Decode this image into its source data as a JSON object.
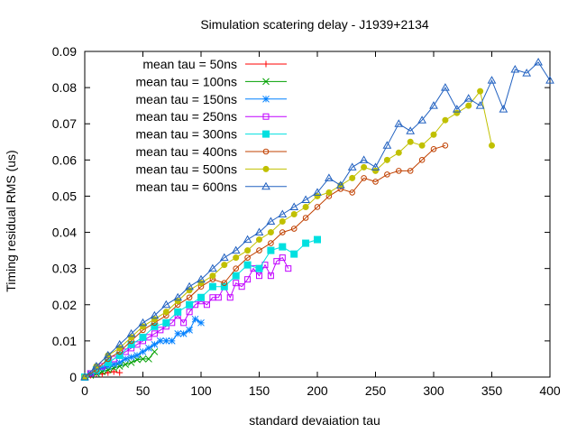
{
  "chart_data": {
    "type": "line",
    "title": "Simulation scatering delay - J1939+2134",
    "xlabel": "standard devaiation tau",
    "ylabel": "Timing residual RMS (us)",
    "xlim": [
      0,
      400
    ],
    "ylim": [
      0,
      0.09
    ],
    "xticks": [
      0,
      50,
      100,
      150,
      200,
      250,
      300,
      350,
      400
    ],
    "yticks": [
      0,
      0.01,
      0.02,
      0.03,
      0.04,
      0.05,
      0.06,
      0.07,
      0.08,
      0.09
    ],
    "ytick_labels": [
      "0",
      "0.01",
      "0.02",
      "0.03",
      "0.04",
      "0.05",
      "0.06",
      "0.07",
      "0.08",
      "0.09"
    ],
    "grid": false,
    "legend_position": "top-left",
    "series": [
      {
        "name": "mean tau = 50ns",
        "color": "#ff0000",
        "marker": "plus",
        "x": [
          0,
          5,
          10,
          15,
          20,
          25,
          30
        ],
        "y": [
          0,
          0.0005,
          0.001,
          0.0008,
          0.0012,
          0.0015,
          0.0012
        ]
      },
      {
        "name": "mean tau = 100ns",
        "color": "#00a000",
        "marker": "cross",
        "x": [
          0,
          5,
          10,
          15,
          20,
          25,
          30,
          35,
          40,
          45,
          50,
          55,
          60
        ],
        "y": [
          0,
          0.0005,
          0.001,
          0.0015,
          0.002,
          0.0025,
          0.003,
          0.0035,
          0.004,
          0.0048,
          0.005,
          0.005,
          0.007
        ]
      },
      {
        "name": "mean tau = 150ns",
        "color": "#0080ff",
        "marker": "star",
        "x": [
          0,
          5,
          10,
          15,
          20,
          25,
          30,
          35,
          40,
          45,
          50,
          55,
          60,
          65,
          70,
          75,
          80,
          85,
          90,
          95,
          100
        ],
        "y": [
          0,
          0.001,
          0.0015,
          0.0025,
          0.003,
          0.0035,
          0.004,
          0.005,
          0.0055,
          0.006,
          0.007,
          0.008,
          0.009,
          0.01,
          0.01,
          0.01,
          0.012,
          0.012,
          0.013,
          0.016,
          0.015
        ]
      },
      {
        "name": "mean tau = 250ns",
        "color": "#c000ff",
        "marker": "square",
        "x": [
          0,
          5,
          10,
          15,
          20,
          25,
          30,
          35,
          40,
          45,
          50,
          55,
          60,
          65,
          70,
          75,
          80,
          85,
          90,
          95,
          100,
          105,
          110,
          115,
          120,
          125,
          130,
          135,
          140,
          145,
          150,
          155,
          160,
          165,
          170,
          175
        ],
        "y": [
          0,
          0.001,
          0.002,
          0.003,
          0.004,
          0.005,
          0.006,
          0.007,
          0.008,
          0.009,
          0.01,
          0.011,
          0.012,
          0.013,
          0.014,
          0.015,
          0.017,
          0.015,
          0.018,
          0.02,
          0.021,
          0.02,
          0.022,
          0.022,
          0.025,
          0.022,
          0.026,
          0.025,
          0.027,
          0.03,
          0.028,
          0.031,
          0.028,
          0.032,
          0.033,
          0.03
        ]
      },
      {
        "name": "mean tau = 300ns",
        "color": "#00e0e0",
        "marker": "filled-square",
        "x": [
          0,
          10,
          20,
          30,
          40,
          50,
          60,
          70,
          80,
          90,
          100,
          110,
          120,
          130,
          140,
          150,
          160,
          170,
          180,
          190,
          200
        ],
        "y": [
          0,
          0.002,
          0.004,
          0.006,
          0.009,
          0.011,
          0.014,
          0.015,
          0.018,
          0.02,
          0.022,
          0.025,
          0.025,
          0.028,
          0.031,
          0.03,
          0.035,
          0.036,
          0.034,
          0.037,
          0.038
        ]
      },
      {
        "name": "mean tau = 400ns",
        "color": "#c04000",
        "marker": "circle",
        "x": [
          0,
          10,
          20,
          30,
          40,
          50,
          60,
          70,
          80,
          90,
          100,
          110,
          120,
          130,
          140,
          150,
          160,
          170,
          180,
          190,
          200,
          210,
          220,
          230,
          240,
          250,
          260,
          270,
          280,
          290,
          300,
          310
        ],
        "y": [
          0,
          0.002,
          0.005,
          0.007,
          0.01,
          0.013,
          0.015,
          0.017,
          0.02,
          0.022,
          0.025,
          0.027,
          0.026,
          0.03,
          0.033,
          0.035,
          0.037,
          0.04,
          0.041,
          0.044,
          0.047,
          0.05,
          0.052,
          0.051,
          0.055,
          0.054,
          0.056,
          0.057,
          0.057,
          0.06,
          0.063,
          0.064
        ]
      },
      {
        "name": "mean tau = 500ns",
        "color": "#c0c000",
        "marker": "filled-circle",
        "x": [
          0,
          10,
          20,
          30,
          40,
          50,
          60,
          70,
          80,
          90,
          100,
          110,
          120,
          130,
          140,
          150,
          160,
          170,
          180,
          190,
          200,
          210,
          220,
          230,
          240,
          250,
          260,
          270,
          280,
          290,
          300,
          310,
          320,
          330,
          340,
          350
        ],
        "y": [
          0,
          0.003,
          0.006,
          0.008,
          0.011,
          0.014,
          0.016,
          0.018,
          0.021,
          0.024,
          0.026,
          0.028,
          0.031,
          0.033,
          0.035,
          0.038,
          0.04,
          0.043,
          0.045,
          0.047,
          0.05,
          0.051,
          0.053,
          0.055,
          0.058,
          0.057,
          0.06,
          0.062,
          0.065,
          0.064,
          0.067,
          0.071,
          0.073,
          0.075,
          0.079,
          0.064
        ]
      },
      {
        "name": "mean tau = 600ns",
        "color": "#2060c0",
        "marker": "triangle",
        "x": [
          0,
          10,
          20,
          30,
          40,
          50,
          60,
          70,
          80,
          90,
          100,
          110,
          120,
          130,
          140,
          150,
          160,
          170,
          180,
          190,
          200,
          210,
          220,
          230,
          240,
          250,
          260,
          270,
          280,
          290,
          300,
          310,
          320,
          330,
          340,
          350,
          360,
          370,
          380,
          390,
          400
        ],
        "y": [
          0,
          0.003,
          0.006,
          0.009,
          0.012,
          0.015,
          0.017,
          0.02,
          0.022,
          0.025,
          0.027,
          0.03,
          0.033,
          0.035,
          0.038,
          0.04,
          0.043,
          0.045,
          0.047,
          0.049,
          0.051,
          0.055,
          0.053,
          0.058,
          0.06,
          0.058,
          0.064,
          0.07,
          0.068,
          0.071,
          0.075,
          0.08,
          0.074,
          0.077,
          0.075,
          0.082,
          0.074,
          0.085,
          0.084,
          0.087,
          0.082
        ]
      }
    ]
  }
}
